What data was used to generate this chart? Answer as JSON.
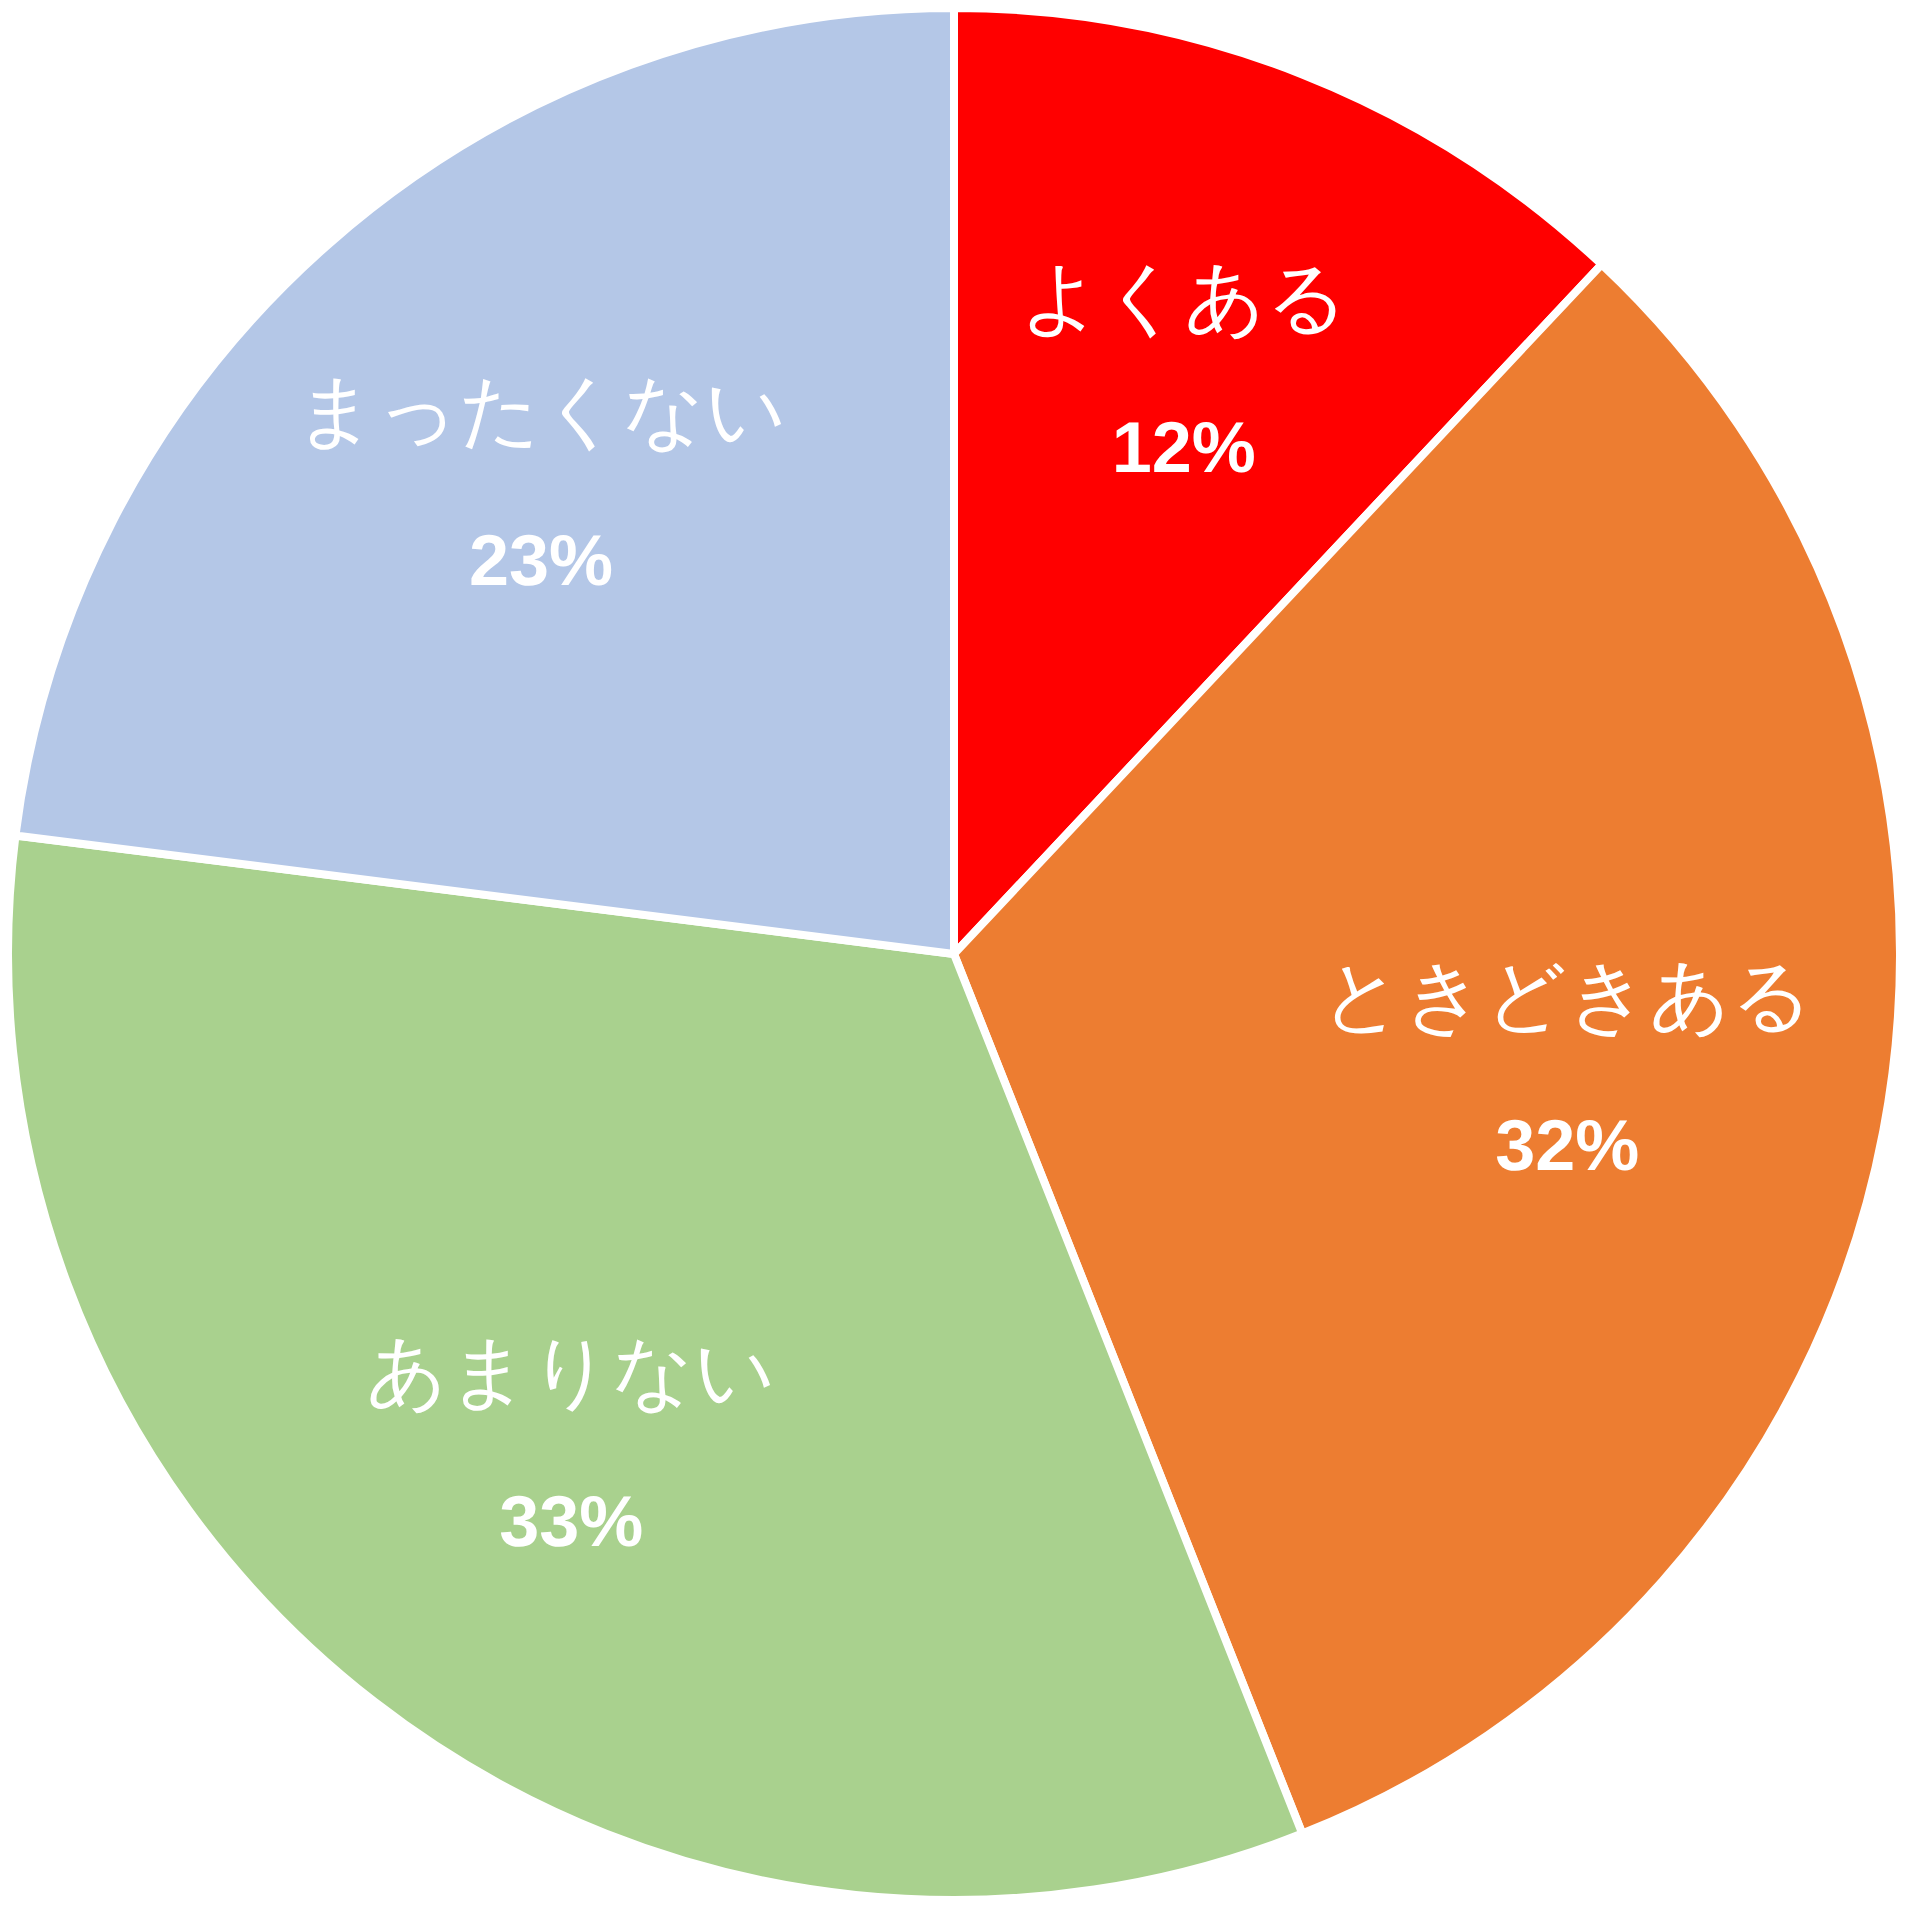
{
  "chart_data": {
    "type": "pie",
    "categories": [
      "よくある",
      "ときどきある",
      "あまりない",
      "まったくない"
    ],
    "values": [
      12,
      32,
      33,
      23
    ],
    "colors": [
      "#ff0000",
      "#ed7d31",
      "#a9d18e",
      "#b4c7e7"
    ],
    "value_labels": [
      "12%",
      "32%",
      "33%",
      "23%"
    ]
  }
}
